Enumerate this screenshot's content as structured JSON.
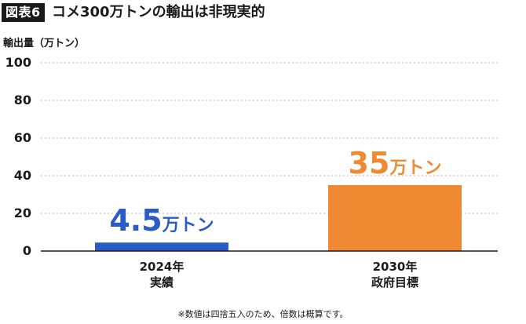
{
  "header": {
    "badge": "図表6",
    "title": "コメ300万トンの輸出は非現実的"
  },
  "chart_data": {
    "type": "bar",
    "ylabel": "輸出量（万トン）",
    "ylim": [
      0,
      100
    ],
    "yticks": [
      "100",
      "80",
      "60",
      "40",
      "20",
      "0"
    ],
    "grid": true,
    "categories": [
      {
        "line1": "2024年",
        "line2": "実績"
      },
      {
        "line1": "2030年",
        "line2": "政府目標"
      }
    ],
    "values": [
      4.5,
      35
    ],
    "data_labels": [
      {
        "num": "4.5",
        "unit": "万トン"
      },
      {
        "num": "35",
        "unit": "万トン"
      }
    ],
    "colors": [
      "#2a5cc7",
      "#ef8a32"
    ]
  },
  "footnote": "※数値は四捨五入のため、倍数は概算です。"
}
